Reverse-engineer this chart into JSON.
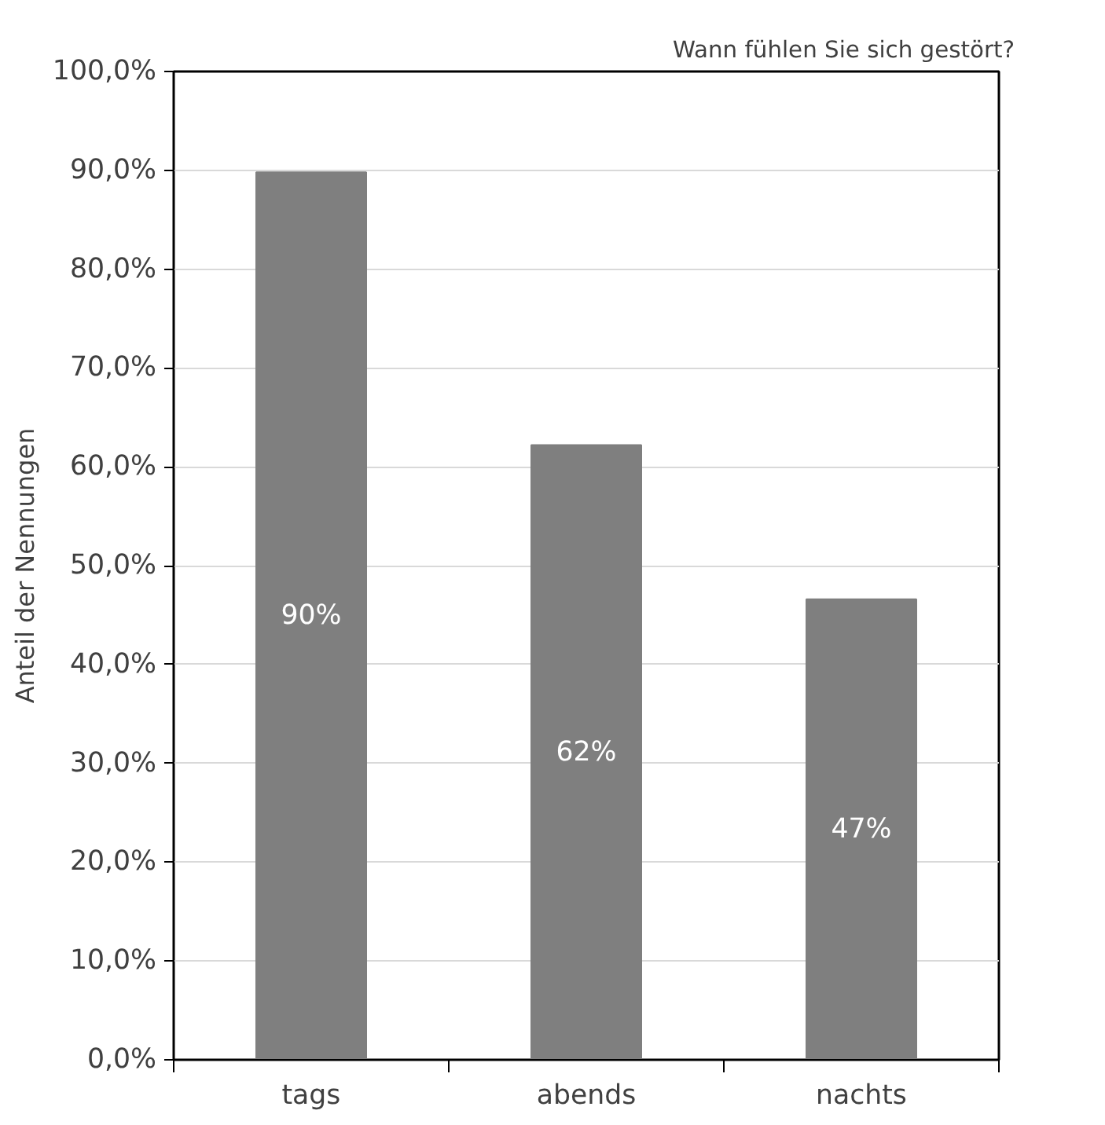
{
  "chart_data": {
    "type": "bar",
    "title": "Wann fühlen Sie sich gestört?",
    "ylabel": "Anteil der Nennungen",
    "categories": [
      "tags",
      "abends",
      "nachts"
    ],
    "values": [
      89.8,
      62.2,
      46.6
    ],
    "value_labels": [
      "90%",
      "62%",
      "47%"
    ],
    "color": "#7f7f7f",
    "ylim": [
      0,
      100
    ],
    "yticks": [
      {
        "value": 0,
        "label": "0,0%"
      },
      {
        "value": 10,
        "label": "10,0%"
      },
      {
        "value": 20,
        "label": "20,0%"
      },
      {
        "value": 30,
        "label": "30,0%"
      },
      {
        "value": 40,
        "label": "40,0%"
      },
      {
        "value": 50,
        "label": "50,0%"
      },
      {
        "value": 60,
        "label": "60,0%"
      },
      {
        "value": 70,
        "label": "70,0%"
      },
      {
        "value": 80,
        "label": "80,0%"
      },
      {
        "value": 90,
        "label": "90,0%"
      },
      {
        "value": 100,
        "label": "100,0%"
      }
    ],
    "grid": "y"
  }
}
